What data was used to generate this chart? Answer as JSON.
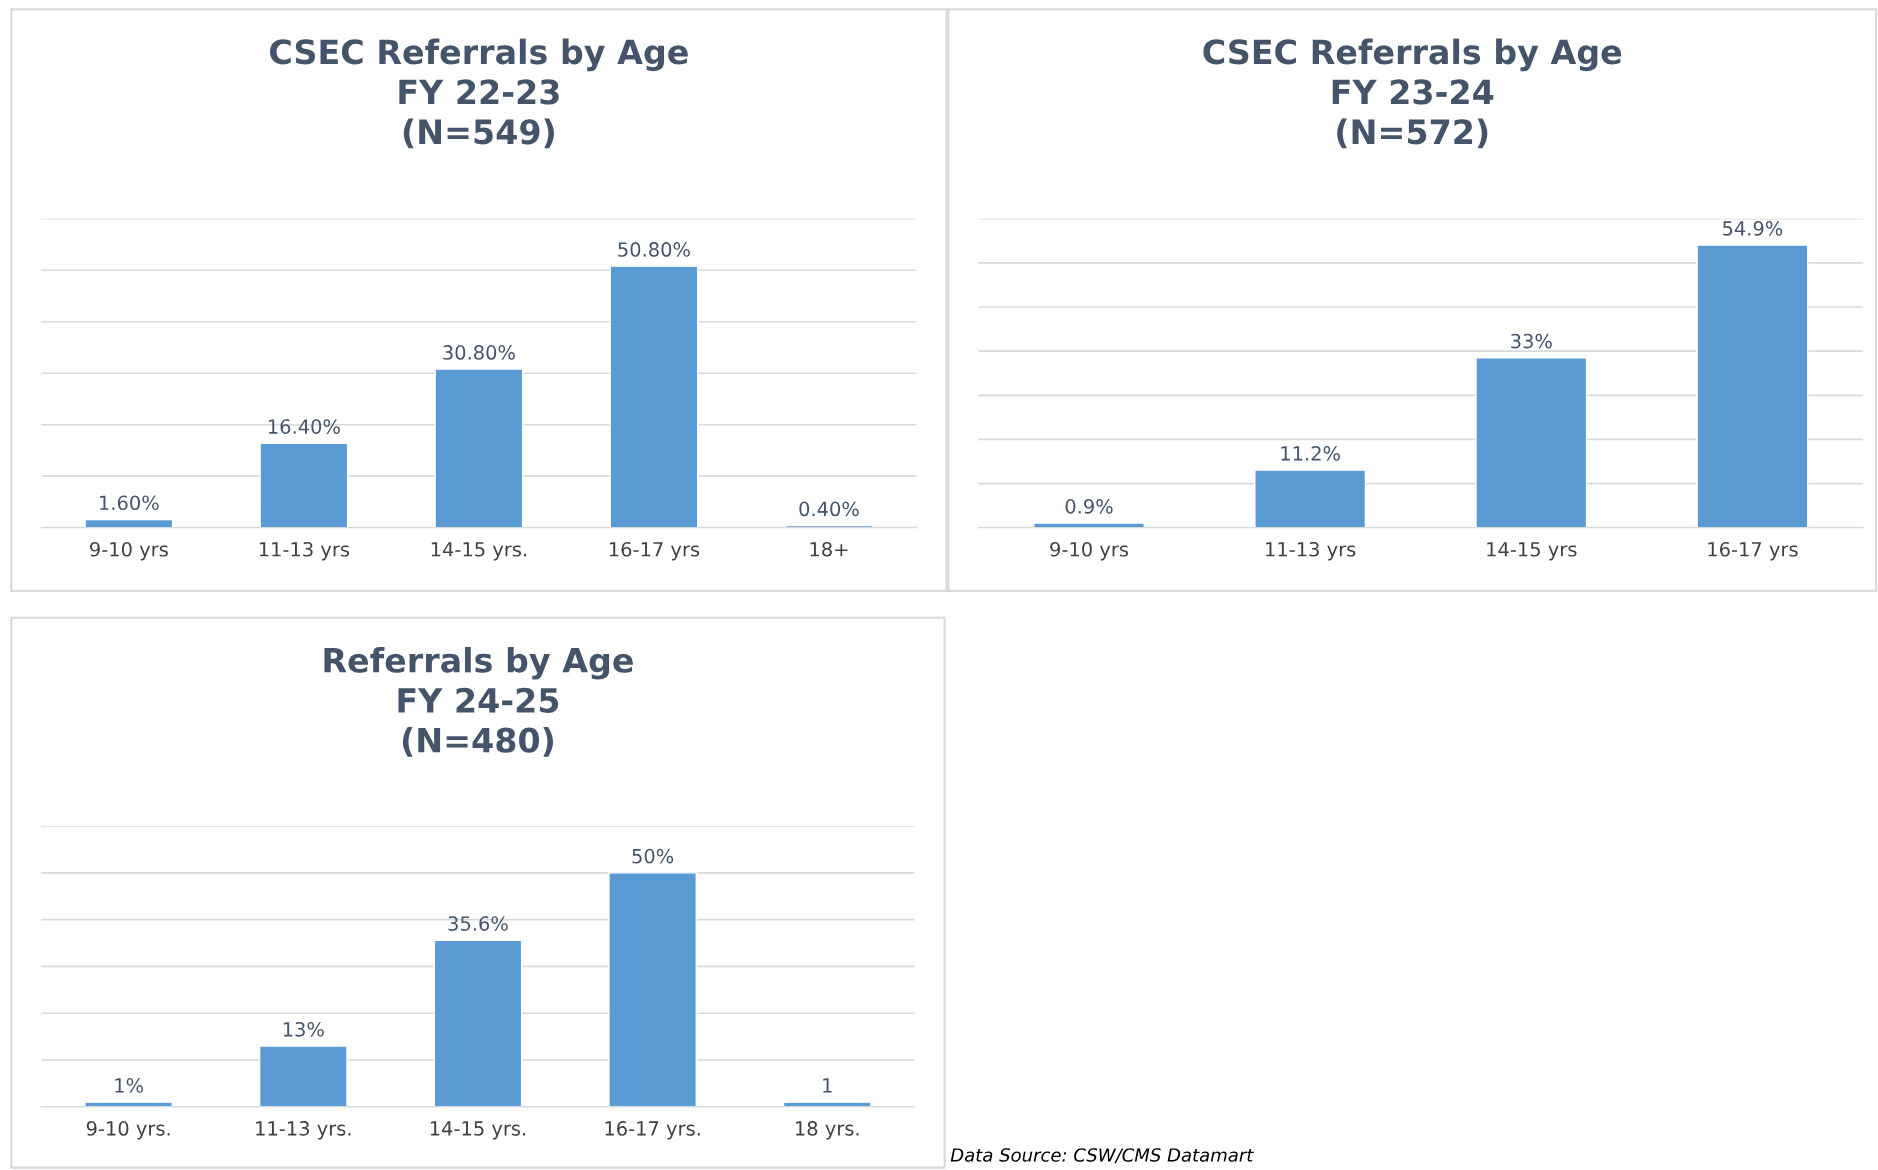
{
  "chart_data": [
    {
      "type": "bar",
      "title": "CSEC Referrals by Age\nFY 22-23\n(N=549)",
      "categories": [
        "9-10 yrs",
        "11-13 yrs",
        "14-15 yrs.",
        "16-17 yrs",
        "18+"
      ],
      "values": [
        1.6,
        16.4,
        30.8,
        50.8,
        0.4
      ],
      "value_labels": [
        "1.60%",
        "16.40%",
        "30.80%",
        "50.80%",
        "0.40%"
      ],
      "color": "#5b9bd5",
      "ylim": [
        0,
        60
      ],
      "yticks": [
        {
          "value": 0,
          "label": null
        },
        {
          "value": 10,
          "label": null
        },
        {
          "value": 20,
          "label": null
        },
        {
          "value": 30,
          "label": null
        },
        {
          "value": 40,
          "label": null
        },
        {
          "value": 50,
          "label": null
        },
        {
          "value": 60,
          "label": null
        }
      ],
      "grid": "y",
      "tick_labels": "x"
    },
    {
      "type": "bar",
      "title": "CSEC Referrals by Age\nFY 23-24\n(N=572)",
      "categories": [
        "9-10 yrs",
        "11-13 yrs",
        "14-15 yrs",
        "16-17 yrs"
      ],
      "values": [
        0.9,
        11.2,
        33,
        54.9
      ],
      "value_labels": [
        "0.9%",
        "11.2%",
        "33%",
        "54.9%"
      ],
      "color": "#5b9bd5",
      "ylim": [
        0,
        60
      ],
      "yticks": [
        {
          "value": 0,
          "label": null
        },
        {
          "value": 8.57,
          "label": null
        },
        {
          "value": 17.14,
          "label": null
        },
        {
          "value": 25.71,
          "label": null
        },
        {
          "value": 34.29,
          "label": null
        },
        {
          "value": 42.86,
          "label": null
        },
        {
          "value": 51.43,
          "label": null
        },
        {
          "value": 60,
          "label": null
        }
      ],
      "grid": "y",
      "tick_labels": "x"
    },
    {
      "type": "bar",
      "title": "Referrals by Age\nFY 24-25\n(N=480)",
      "categories": [
        "9-10 yrs.",
        "11-13 yrs.",
        "14-15 yrs.",
        "16-17 yrs.",
        "18 yrs."
      ],
      "values": [
        1,
        13,
        35.6,
        50,
        1
      ],
      "value_labels": [
        "1%",
        "13%",
        "35.6%",
        "50%",
        "1"
      ],
      "color": "#5b9bd5",
      "ylim": [
        0,
        60
      ],
      "yticks": [
        {
          "value": 0,
          "label": null
        },
        {
          "value": 10,
          "label": null
        },
        {
          "value": 20,
          "label": null
        },
        {
          "value": 30,
          "label": null
        },
        {
          "value": 40,
          "label": null
        },
        {
          "value": 50,
          "label": null
        },
        {
          "value": 60,
          "label": null
        }
      ],
      "grid": "y",
      "tick_labels": "x",
      "annotations": [
        "Data Source: CSW/CMS Datamart"
      ]
    }
  ]
}
